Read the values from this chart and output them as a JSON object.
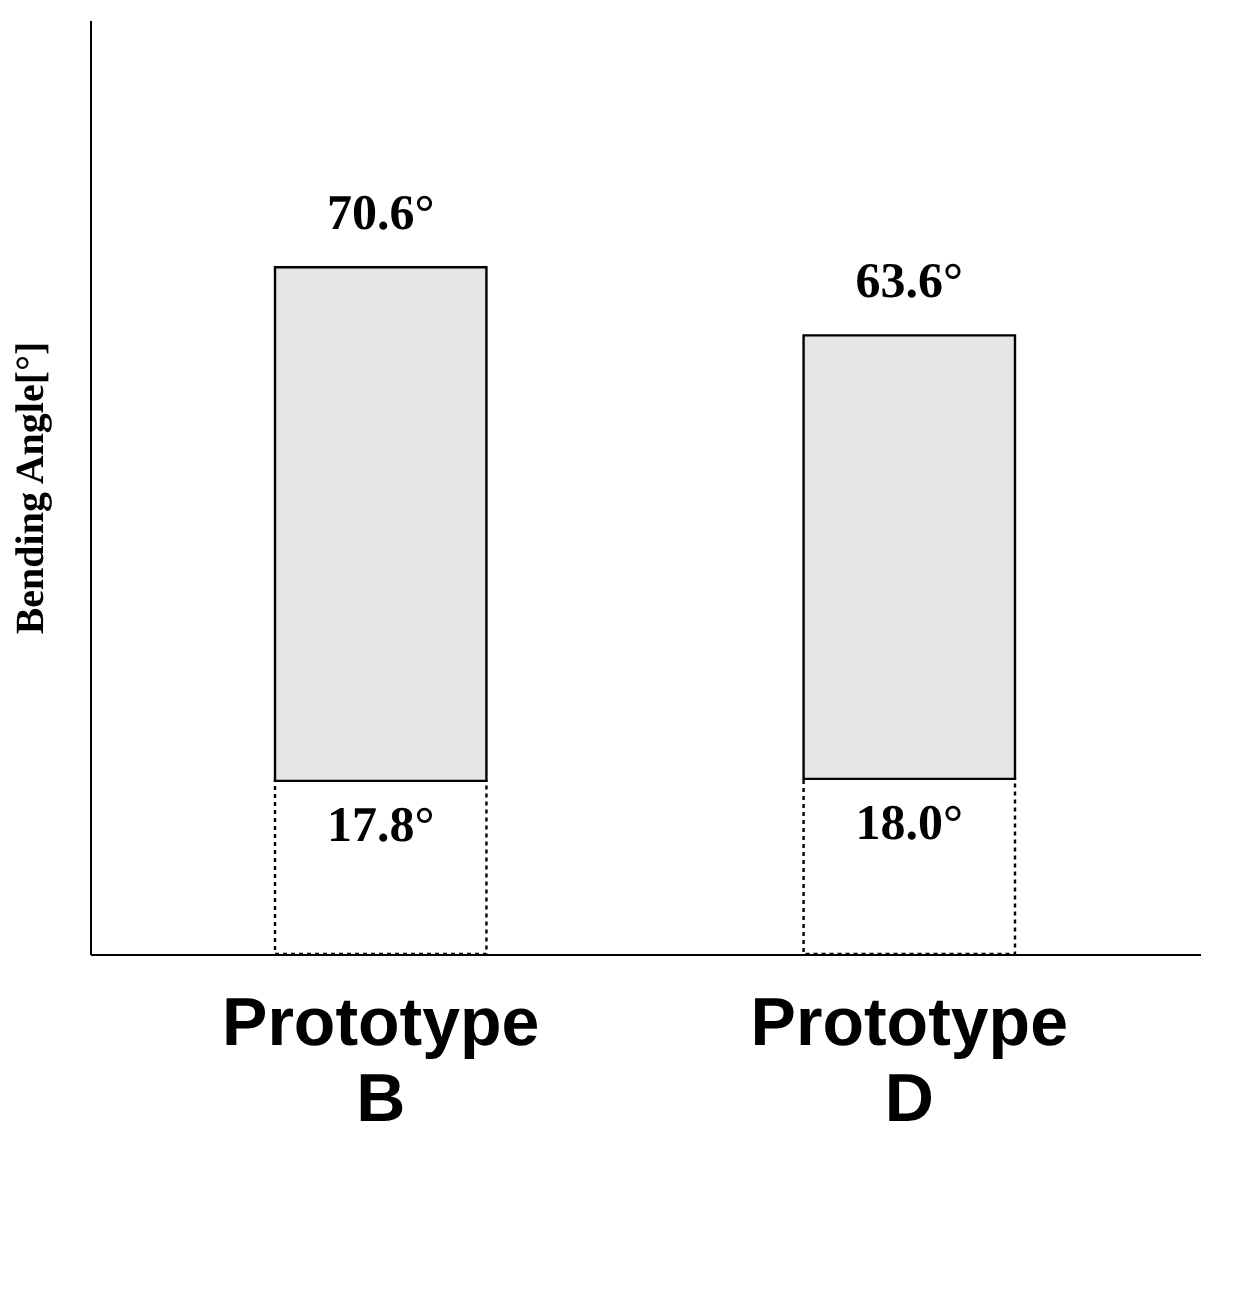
{
  "chart_data": {
    "type": "bar",
    "stacked": true,
    "ylabel": "Bending Angle[°]",
    "categories": [
      "Prototype B",
      "Prototype D"
    ],
    "series": [
      {
        "color": "#ffffff",
        "line_style": "dotted",
        "values": [
          17.8,
          18.0
        ],
        "value_labels": [
          "17.8°",
          "18.0°"
        ]
      },
      {
        "color": "#e5e5e5",
        "line_style": "solid",
        "values": [
          52.8,
          45.6
        ]
      }
    ],
    "annotations": [
      {
        "text": "70.6°",
        "x": "Prototype B",
        "y": 70.6
      },
      {
        "text": "63.6°",
        "x": "Prototype D",
        "y": 63.6
      }
    ],
    "tick_labels": "x",
    "grid": false
  }
}
